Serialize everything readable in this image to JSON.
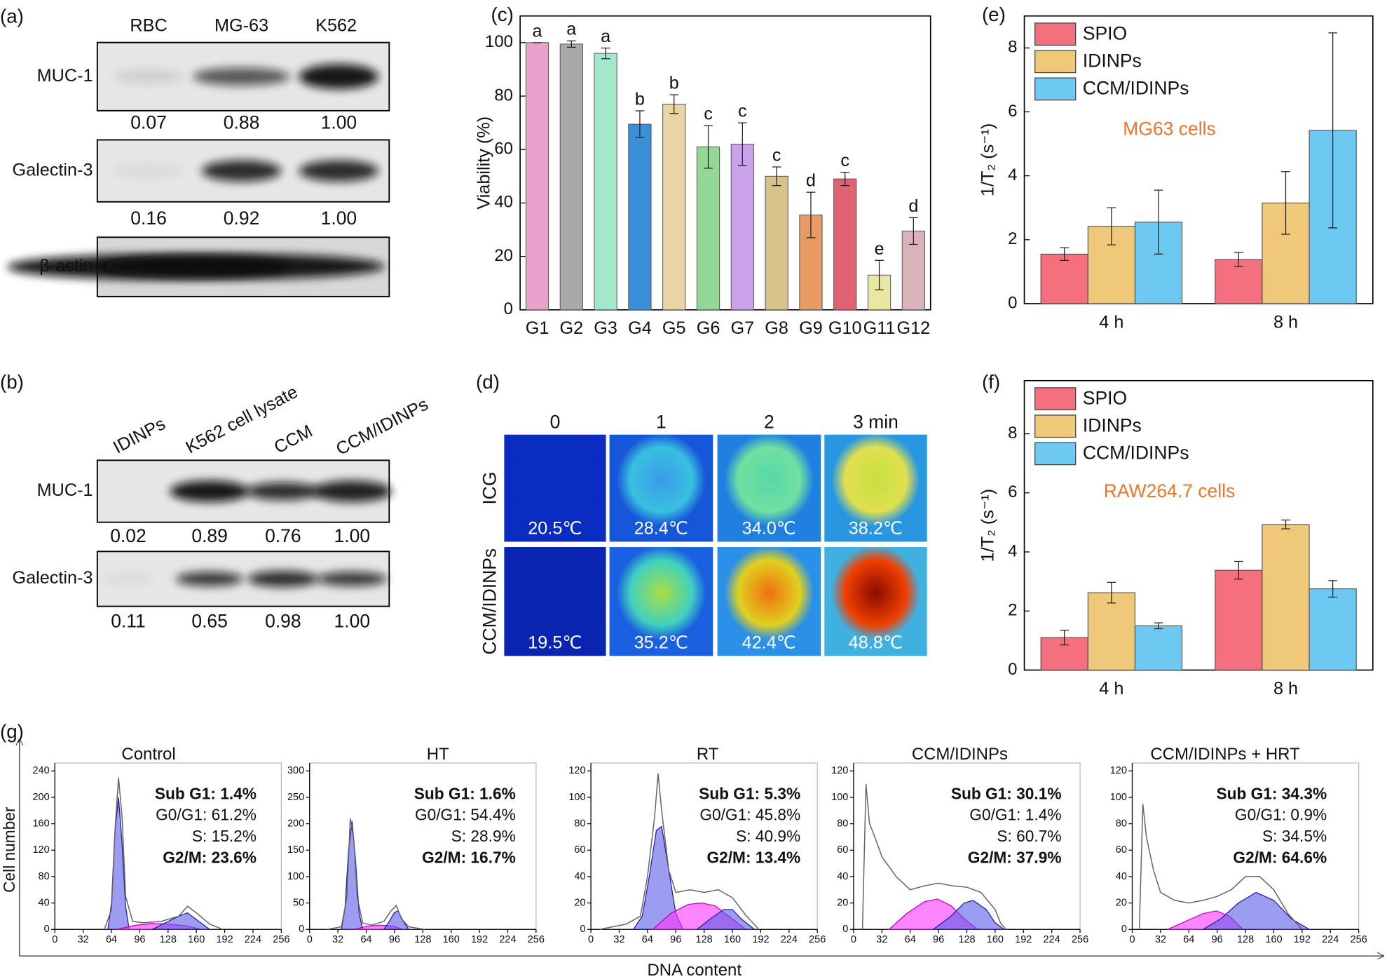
{
  "figure_labels": [
    "(a)",
    "(b)",
    "(c)",
    "(d)",
    "(e)",
    "(f)",
    "(g)"
  ],
  "panel_a": {
    "columns": [
      "RBC",
      "MG-63",
      "K562"
    ],
    "rows": [
      "MUC-1",
      "Galectin-3",
      "β-actin"
    ],
    "quantities": [
      [
        "0.07",
        "0.88",
        "1.00"
      ],
      [
        "0.16",
        "0.92",
        "1.00"
      ]
    ]
  },
  "panel_b": {
    "columns": [
      "IDINPs",
      "K562 cell lysate",
      "CCM",
      "CCM/IDINPs"
    ],
    "rows": [
      "MUC-1",
      "Galectin-3"
    ],
    "quantities": [
      [
        "0.02",
        "0.89",
        "0.76",
        "1.00"
      ],
      [
        "0.11",
        "0.65",
        "0.98",
        "1.00"
      ]
    ]
  },
  "panel_d": {
    "columns": [
      "0",
      "1",
      "2",
      "3 min"
    ],
    "rows": [
      "ICG",
      "CCM/IDINPs"
    ],
    "temperatures": [
      [
        "20.5℃",
        "28.4℃",
        "34.0℃",
        "38.2℃"
      ],
      [
        "19.5℃",
        "35.2℃",
        "42.4℃",
        "48.8℃"
      ]
    ]
  },
  "panel_g": {
    "ylabel": "Cell number",
    "xlabel": "DNA content"
  },
  "chart_data": [
    {
      "type": "bar",
      "ylabel": "Viability (%)",
      "categories": [
        "G1",
        "G2",
        "G3",
        "G4",
        "G5",
        "G6",
        "G7",
        "G8",
        "G9",
        "G10",
        "G11",
        "G12"
      ],
      "values": [
        100,
        99.5,
        96,
        69.5,
        77,
        61,
        62,
        50,
        35.5,
        49,
        13,
        29.5
      ],
      "errors": [
        0,
        1.2,
        2,
        5,
        3.5,
        8,
        8,
        3.5,
        8.5,
        2.5,
        5.5,
        5
      ],
      "annotations": [
        "a",
        "a",
        "a",
        "b",
        "b",
        "c",
        "c",
        "c",
        "d",
        "c",
        "e",
        "d"
      ],
      "colors": [
        "#eaa2cc",
        "#a9a9a9",
        "#a2e8cb",
        "#3b8fd8",
        "#ead3a4",
        "#93d994",
        "#c9a2ea",
        "#d9c18a",
        "#e89a63",
        "#e06272",
        "#e8e8a2",
        "#d9b2ba"
      ],
      "ylim": [
        0,
        110
      ],
      "yticks": [
        0,
        20,
        40,
        60,
        80,
        100
      ]
    },
    {
      "type": "grouped_bar",
      "ylabel": "1/T₂ (s⁻¹)",
      "annotation": "MG63 cells",
      "legend": "upper left",
      "categories": [
        "4 h",
        "8 h"
      ],
      "series": [
        {
          "name": "SPIO",
          "color": "#f5707f",
          "values": [
            1.55,
            1.38
          ],
          "errors": [
            0.2,
            0.22
          ]
        },
        {
          "name": "IDINPs",
          "color": "#f0c87a",
          "values": [
            2.42,
            3.15
          ],
          "errors": [
            0.58,
            0.98
          ]
        },
        {
          "name": "CCM/IDINPs",
          "color": "#6dc8f2",
          "values": [
            2.55,
            5.42
          ],
          "errors": [
            1.0,
            3.05
          ]
        }
      ],
      "ylim": [
        0,
        9
      ],
      "yticks": [
        0,
        2,
        4,
        6,
        8
      ]
    },
    {
      "type": "grouped_bar",
      "ylabel": "1/T₂ (s⁻¹)",
      "annotation": "RAW264.7 cells",
      "legend": "upper left",
      "categories": [
        "4 h",
        "8 h"
      ],
      "series": [
        {
          "name": "SPIO",
          "color": "#f5707f",
          "values": [
            1.1,
            3.38
          ],
          "errors": [
            0.25,
            0.3
          ]
        },
        {
          "name": "IDINPs",
          "color": "#f0c87a",
          "values": [
            2.62,
            4.93
          ],
          "errors": [
            0.35,
            0.15
          ]
        },
        {
          "name": "CCM/IDINPs",
          "color": "#6dc8f2",
          "values": [
            1.5,
            2.75
          ],
          "errors": [
            0.1,
            0.28
          ]
        }
      ],
      "ylim": [
        0,
        9.8
      ],
      "yticks": [
        0,
        2,
        4,
        6,
        8
      ]
    },
    {
      "type": "histogram",
      "title": "Control",
      "stats": [
        "Sub G1: 1.4%",
        "G0/G1: 61.2%",
        "S: 15.2%",
        "G2/M: 23.6%"
      ],
      "xlim": [
        0,
        256
      ],
      "xticks": [
        0,
        32,
        64,
        96,
        128,
        160,
        192,
        224,
        256
      ],
      "ylim": [
        0,
        252
      ],
      "yticks": [
        0,
        40,
        80,
        120,
        160,
        200,
        240
      ],
      "series": [
        {
          "style": "area",
          "color": "#5a5ae6",
          "x": [
            60,
            64,
            68,
            72,
            76,
            80,
            84
          ],
          "values": [
            0,
            40,
            150,
            200,
            130,
            35,
            0
          ]
        },
        {
          "style": "area",
          "color": "#ff33ff",
          "x": [
            70,
            90,
            110,
            130,
            150,
            165
          ],
          "values": [
            0,
            6,
            9,
            8,
            5,
            0
          ]
        },
        {
          "style": "area",
          "color": "#5a5ae6",
          "x": [
            110,
            125,
            140,
            150,
            160,
            175
          ],
          "values": [
            0,
            10,
            20,
            25,
            15,
            0
          ]
        },
        {
          "style": "line",
          "color": "#666666",
          "x": [
            56,
            64,
            68,
            72,
            76,
            80,
            88,
            100,
            120,
            140,
            150,
            160,
            175,
            190
          ],
          "values": [
            0,
            30,
            150,
            230,
            170,
            50,
            12,
            10,
            12,
            20,
            35,
            25,
            8,
            0
          ]
        }
      ]
    },
    {
      "type": "histogram",
      "title": "HT",
      "stats": [
        "Sub G1: 1.6%",
        "G0/G1: 54.4%",
        "S: 28.9%",
        "G2/M: 16.7%"
      ],
      "xlim": [
        0,
        256
      ],
      "xticks": [
        0,
        32,
        64,
        96,
        128,
        160,
        192,
        224,
        256
      ],
      "ylim": [
        0,
        315
      ],
      "yticks": [
        0,
        50,
        100,
        150,
        200,
        250,
        300
      ],
      "series": [
        {
          "style": "area",
          "color": "#5a5ae6",
          "x": [
            36,
            40,
            44,
            48,
            52,
            56,
            60
          ],
          "values": [
            0,
            40,
            150,
            205,
            130,
            30,
            0
          ]
        },
        {
          "style": "area",
          "color": "#ff33ff",
          "x": [
            50,
            65,
            80,
            95,
            105
          ],
          "values": [
            0,
            6,
            8,
            6,
            0
          ]
        },
        {
          "style": "area",
          "color": "#5a5ae6",
          "x": [
            84,
            90,
            96,
            100,
            106,
            112
          ],
          "values": [
            0,
            15,
            32,
            35,
            15,
            0
          ]
        },
        {
          "style": "line",
          "color": "#666666",
          "x": [
            20,
            36,
            42,
            46,
            50,
            54,
            60,
            70,
            84,
            92,
            98,
            104,
            112,
            130
          ],
          "values": [
            0,
            5,
            60,
            210,
            170,
            60,
            12,
            8,
            15,
            35,
            45,
            20,
            5,
            0
          ]
        }
      ]
    },
    {
      "type": "histogram",
      "title": "RT",
      "stats": [
        "Sub G1: 5.3%",
        "G0/G1: 45.8%",
        "S: 40.9%",
        "G2/M: 13.4%"
      ],
      "xlim": [
        0,
        256
      ],
      "xticks": [
        0,
        32,
        64,
        96,
        128,
        160,
        192,
        224,
        256
      ],
      "ylim": [
        0,
        126
      ],
      "yticks": [
        0,
        20,
        40,
        60,
        80,
        100,
        120
      ],
      "series": [
        {
          "style": "area",
          "color": "#5a5ae6",
          "x": [
            48,
            58,
            66,
            74,
            80,
            88,
            96,
            104
          ],
          "values": [
            0,
            10,
            40,
            75,
            78,
            45,
            12,
            0
          ]
        },
        {
          "style": "area",
          "color": "#ff33ff",
          "x": [
            70,
            90,
            110,
            125,
            140,
            160,
            175
          ],
          "values": [
            0,
            12,
            19,
            20,
            18,
            8,
            0
          ]
        },
        {
          "style": "area",
          "color": "#5a5ae6",
          "x": [
            120,
            135,
            150,
            160,
            170,
            185
          ],
          "values": [
            0,
            8,
            15,
            15,
            8,
            0
          ]
        },
        {
          "style": "line",
          "color": "#666666",
          "x": [
            10,
            40,
            56,
            64,
            72,
            76,
            80,
            88,
            96,
            112,
            128,
            144,
            160,
            176,
            190
          ],
          "values": [
            0,
            4,
            10,
            40,
            85,
            118,
            90,
            45,
            28,
            30,
            28,
            30,
            24,
            10,
            0
          ]
        }
      ]
    },
    {
      "type": "histogram",
      "title": "CCM/IDINPs",
      "stats": [
        "Sub G1: 30.1%",
        "G0/G1: 1.4%",
        "S: 60.7%",
        "G2/M: 37.9%"
      ],
      "xlim": [
        0,
        256
      ],
      "xticks": [
        0,
        32,
        64,
        96,
        128,
        160,
        192,
        224,
        256
      ],
      "ylim": [
        0,
        126
      ],
      "yticks": [
        0,
        20,
        40,
        60,
        80,
        100,
        120
      ],
      "series": [
        {
          "style": "area",
          "color": "#ff33ff",
          "x": [
            40,
            60,
            80,
            95,
            110,
            125,
            140
          ],
          "values": [
            0,
            12,
            21,
            23,
            18,
            8,
            0
          ]
        },
        {
          "style": "area",
          "color": "#5a5ae6",
          "x": [
            90,
            110,
            125,
            135,
            150,
            160,
            170
          ],
          "values": [
            0,
            10,
            20,
            22,
            15,
            5,
            0
          ]
        },
        {
          "style": "line",
          "color": "#666666",
          "x": [
            10,
            14,
            18,
            24,
            32,
            48,
            64,
            80,
            96,
            112,
            128,
            144,
            160,
            166,
            172
          ],
          "values": [
            0,
            110,
            80,
            70,
            55,
            40,
            30,
            33,
            35,
            33,
            32,
            28,
            15,
            5,
            0
          ]
        }
      ]
    },
    {
      "type": "histogram",
      "title": "CCM/IDINPs + HRT",
      "stats": [
        "Sub G1: 34.3%",
        "G0/G1: 0.9%",
        "S: 34.5%",
        "G2/M: 64.6%"
      ],
      "xlim": [
        0,
        256
      ],
      "xticks": [
        0,
        32,
        64,
        96,
        128,
        160,
        192,
        224,
        256
      ],
      "ylim": [
        0,
        126
      ],
      "yticks": [
        0,
        20,
        40,
        60,
        80,
        100,
        120
      ],
      "series": [
        {
          "style": "area",
          "color": "#ff33ff",
          "x": [
            40,
            60,
            80,
            95,
            110,
            125
          ],
          "values": [
            0,
            6,
            12,
            14,
            10,
            0
          ]
        },
        {
          "style": "area",
          "color": "#5a5ae6",
          "x": [
            80,
            100,
            120,
            140,
            160,
            180,
            200
          ],
          "values": [
            0,
            8,
            20,
            28,
            22,
            8,
            0
          ]
        },
        {
          "style": "line",
          "color": "#666666",
          "x": [
            8,
            12,
            16,
            24,
            32,
            48,
            64,
            80,
            96,
            112,
            128,
            144,
            160,
            176,
            192
          ],
          "values": [
            0,
            95,
            70,
            45,
            28,
            22,
            20,
            22,
            25,
            30,
            40,
            40,
            30,
            12,
            0
          ]
        }
      ]
    }
  ]
}
